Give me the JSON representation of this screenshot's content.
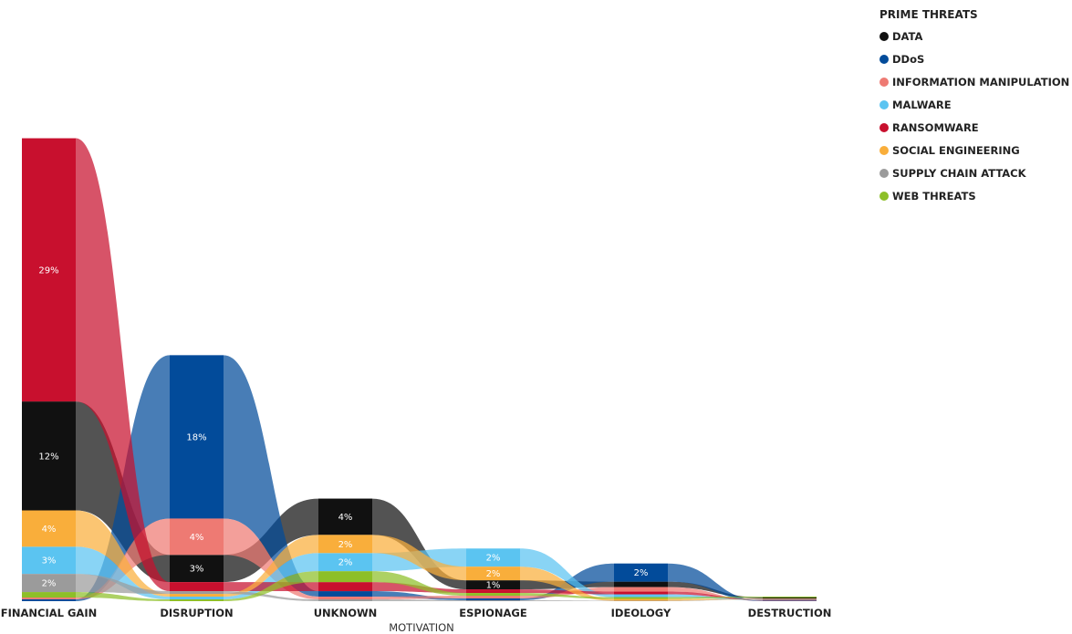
{
  "chart_data": {
    "type": "ribbon",
    "xlabel": "MOTIVATION",
    "categories": [
      "FINANCIAL GAIN",
      "DISRUPTION",
      "UNKNOWN",
      "ESPIONAGE",
      "IDEOLOGY",
      "DESTRUCTION"
    ],
    "legend": {
      "title": "PRIME THREATS",
      "placement": "top-right"
    },
    "series": [
      {
        "name": "DATA",
        "color": "#111111",
        "values": [
          12,
          3,
          4,
          1,
          0.6,
          0.1
        ]
      },
      {
        "name": "DDoS",
        "color": "#024b9a",
        "values": [
          0.2,
          18,
          0.6,
          0.2,
          2,
          0.05
        ]
      },
      {
        "name": "INFORMATION MANIPULATION",
        "color": "#ee7a73",
        "values": [
          0.2,
          4,
          0.3,
          0.3,
          0.5,
          0.05
        ]
      },
      {
        "name": "MALWARE",
        "color": "#5bc4f1",
        "values": [
          3,
          0.3,
          2,
          2,
          0.3,
          0.05
        ]
      },
      {
        "name": "RANSOMWARE",
        "color": "#c8102e",
        "values": [
          29,
          1,
          1,
          0.4,
          0.3,
          0.05
        ]
      },
      {
        "name": "SOCIAL ENGINEERING",
        "color": "#f9ae3b",
        "values": [
          4,
          0.3,
          2,
          1.5,
          0.2,
          0.05
        ]
      },
      {
        "name": "SUPPLY CHAIN ATTACK",
        "color": "#9b9b9b",
        "values": [
          2,
          0.3,
          0.2,
          0.1,
          0.05,
          0.05
        ]
      },
      {
        "name": "WEB THREATS",
        "color": "#8dbf28",
        "values": [
          0.6,
          0.2,
          1.2,
          0.3,
          0.2,
          0.1
        ]
      }
    ],
    "data_labels": [
      "29%",
      "12%",
      "4%",
      "3%",
      "2%",
      "18%",
      "4%",
      "3%",
      "4%",
      "2%",
      "2%",
      "2%",
      "2%",
      "1%",
      "2%"
    ],
    "label_positions": [
      {
        "series": "RANSOMWARE",
        "category": "FINANCIAL GAIN",
        "label": 0
      },
      {
        "series": "DATA",
        "category": "FINANCIAL GAIN",
        "label": 1
      },
      {
        "series": "SOCIAL ENGINEERING",
        "category": "FINANCIAL GAIN",
        "label": 2
      },
      {
        "series": "MALWARE",
        "category": "FINANCIAL GAIN",
        "label": 3
      },
      {
        "series": "SUPPLY CHAIN ATTACK",
        "category": "FINANCIAL GAIN",
        "label": 4
      },
      {
        "series": "DDoS",
        "category": "DISRUPTION",
        "label": 5
      },
      {
        "series": "INFORMATION MANIPULATION",
        "category": "DISRUPTION",
        "label": 6
      },
      {
        "series": "DATA",
        "category": "DISRUPTION",
        "label": 7
      },
      {
        "series": "DATA",
        "category": "UNKNOWN",
        "label": 8
      },
      {
        "series": "MALWARE",
        "category": "UNKNOWN",
        "label": 9
      },
      {
        "series": "SOCIAL ENGINEERING",
        "category": "UNKNOWN",
        "label": 10
      },
      {
        "series": "MALWARE",
        "category": "ESPIONAGE",
        "label": 11
      },
      {
        "series": "SOCIAL ENGINEERING",
        "category": "ESPIONAGE",
        "label": 12
      },
      {
        "series": "DATA",
        "category": "ESPIONAGE",
        "label": 13
      },
      {
        "series": "DDoS",
        "category": "IDEOLOGY",
        "label": 14
      }
    ]
  }
}
